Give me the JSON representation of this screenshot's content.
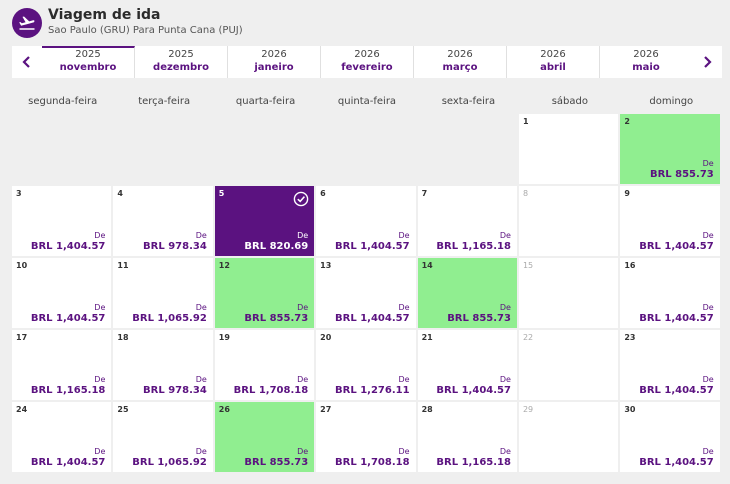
{
  "header": {
    "title": "Viagem de ida",
    "subtitle": "Sao Paulo (GRU) Para Punta Cana (PUJ)"
  },
  "colors": {
    "accent": "#5b1280",
    "cheapest": "#90ee90"
  },
  "months": [
    {
      "year": "2025",
      "name": "novembro",
      "active": true
    },
    {
      "year": "2025",
      "name": "dezembro"
    },
    {
      "year": "2026",
      "name": "janeiro"
    },
    {
      "year": "2026",
      "name": "fevereiro"
    },
    {
      "year": "2026",
      "name": "março"
    },
    {
      "year": "2026",
      "name": "abril"
    },
    {
      "year": "2026",
      "name": "maio"
    }
  ],
  "weekdays": [
    "segunda-feira",
    "terça-feira",
    "quarta-feira",
    "quinta-feira",
    "sexta-feira",
    "sábado",
    "domingo"
  ],
  "price_prefix": "De",
  "leading_blanks": 5,
  "days": [
    {
      "day": "1",
      "price": ""
    },
    {
      "day": "2",
      "price": "BRL 855.73",
      "state": "green"
    },
    {
      "day": "3",
      "price": "BRL 1,404.57"
    },
    {
      "day": "4",
      "price": "BRL 978.34"
    },
    {
      "day": "5",
      "price": "BRL 820.69",
      "state": "selected"
    },
    {
      "day": "6",
      "price": "BRL 1,404.57"
    },
    {
      "day": "7",
      "price": "BRL 1,165.18"
    },
    {
      "day": "8",
      "price": "",
      "state": "disabled"
    },
    {
      "day": "9",
      "price": "BRL 1,404.57"
    },
    {
      "day": "10",
      "price": "BRL 1,404.57"
    },
    {
      "day": "11",
      "price": "BRL 1,065.92"
    },
    {
      "day": "12",
      "price": "BRL 855.73",
      "state": "green"
    },
    {
      "day": "13",
      "price": "BRL 1,404.57"
    },
    {
      "day": "14",
      "price": "BRL 855.73",
      "state": "green"
    },
    {
      "day": "15",
      "price": "",
      "state": "disabled"
    },
    {
      "day": "16",
      "price": "BRL 1,404.57"
    },
    {
      "day": "17",
      "price": "BRL 1,165.18"
    },
    {
      "day": "18",
      "price": "BRL 978.34"
    },
    {
      "day": "19",
      "price": "BRL 1,708.18"
    },
    {
      "day": "20",
      "price": "BRL 1,276.11"
    },
    {
      "day": "21",
      "price": "BRL 1,404.57"
    },
    {
      "day": "22",
      "price": "",
      "state": "disabled"
    },
    {
      "day": "23",
      "price": "BRL 1,404.57"
    },
    {
      "day": "24",
      "price": "BRL 1,404.57"
    },
    {
      "day": "25",
      "price": "BRL 1,065.92"
    },
    {
      "day": "26",
      "price": "BRL 855.73",
      "state": "green"
    },
    {
      "day": "27",
      "price": "BRL 1,708.18"
    },
    {
      "day": "28",
      "price": "BRL 1,165.18"
    },
    {
      "day": "29",
      "price": "",
      "state": "disabled"
    },
    {
      "day": "30",
      "price": "BRL 1,404.57"
    }
  ]
}
